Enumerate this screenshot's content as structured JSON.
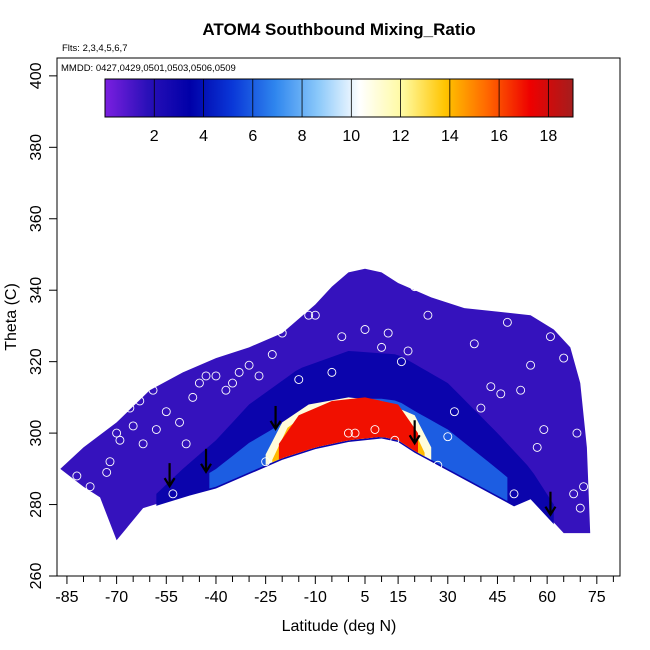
{
  "chart_data": {
    "type": "heatmap",
    "title": "ATOM4 Southbound Mixing_Ratio",
    "flights_note": "Flts: 2,3,4,5,6,7",
    "dates_note": "MMDD: 0427,0429,0501,0503,0506,0509",
    "xlabel": "Latitude (deg N)",
    "ylabel": "Theta (C)",
    "xlim": [
      -88,
      82
    ],
    "ylim": [
      260,
      405
    ],
    "x_ticks": [
      -85,
      -70,
      -55,
      -40,
      -25,
      -10,
      5,
      15,
      30,
      45,
      60,
      75
    ],
    "x_minor_ticks": [
      -80,
      -75,
      -65,
      -60,
      -50,
      -45,
      -35,
      -30,
      -20,
      -15,
      -5,
      0,
      10,
      20,
      25,
      35,
      40,
      50,
      55,
      65,
      70,
      80
    ],
    "y_ticks": [
      260,
      280,
      300,
      320,
      340,
      360,
      380,
      400
    ],
    "colorbar": {
      "range": [
        0,
        19
      ],
      "ticks": [
        2,
        4,
        6,
        8,
        10,
        12,
        14,
        16,
        18
      ],
      "colors": [
        "#7b1fe0",
        "#2a10b8",
        "#0000a8",
        "#0a38d8",
        "#2f86ee",
        "#8ac8fa",
        "#ffffff",
        "#fffaa0",
        "#ffc400",
        "#ff6600",
        "#ee0000",
        "#a51d1d"
      ]
    },
    "domain_outline": {
      "upper": [
        [
          -87,
          290
        ],
        [
          -80,
          296
        ],
        [
          -70,
          303
        ],
        [
          -60,
          312
        ],
        [
          -50,
          317
        ],
        [
          -40,
          321
        ],
        [
          -30,
          324
        ],
        [
          -20,
          328
        ],
        [
          -10,
          336
        ],
        [
          -5,
          341
        ],
        [
          0,
          345
        ],
        [
          5,
          346
        ],
        [
          10,
          345
        ],
        [
          15,
          342
        ],
        [
          25,
          338
        ],
        [
          35,
          335
        ],
        [
          45,
          334
        ],
        [
          55,
          333
        ],
        [
          62,
          329
        ],
        [
          67,
          324
        ],
        [
          70,
          314
        ],
        [
          72,
          296
        ],
        [
          73,
          272
        ]
      ],
      "lower": [
        [
          -87,
          290
        ],
        [
          -80,
          285
        ],
        [
          -75,
          282
        ],
        [
          -70,
          270
        ],
        [
          -62,
          279
        ],
        [
          -55,
          281
        ],
        [
          -48,
          283
        ],
        [
          -40,
          285
        ],
        [
          -30,
          289
        ],
        [
          -20,
          293
        ],
        [
          -10,
          296
        ],
        [
          0,
          298
        ],
        [
          10,
          299
        ],
        [
          15,
          298
        ],
        [
          20,
          295
        ],
        [
          30,
          290
        ],
        [
          40,
          285
        ],
        [
          50,
          280
        ],
        [
          55,
          282
        ],
        [
          65,
          272
        ],
        [
          73,
          272
        ]
      ]
    },
    "isolines": {
      "wet_core": [
        [
          -25,
          294
        ],
        [
          -20,
          303
        ],
        [
          -12,
          308
        ],
        [
          0,
          310
        ],
        [
          10,
          309
        ],
        [
          20,
          305
        ],
        [
          25,
          296
        ]
      ],
      "red_core": [
        [
          -21,
          297
        ],
        [
          -15,
          305
        ],
        [
          -5,
          309
        ],
        [
          5,
          310
        ],
        [
          15,
          308
        ],
        [
          21,
          300
        ]
      ],
      "blue_band": [
        [
          -58,
          283
        ],
        [
          -50,
          290
        ],
        [
          -40,
          298
        ],
        [
          -30,
          308
        ],
        [
          -15,
          318
        ],
        [
          0,
          323
        ],
        [
          15,
          322
        ],
        [
          30,
          314
        ],
        [
          45,
          300
        ],
        [
          55,
          290
        ],
        [
          62,
          280
        ]
      ]
    },
    "arrows": [
      {
        "lat": -54,
        "theta": 286
      },
      {
        "lat": -43,
        "theta": 290
      },
      {
        "lat": -22,
        "theta": 302
      },
      {
        "lat": 20,
        "theta": 298
      },
      {
        "lat": 61,
        "theta": 278
      }
    ],
    "observations": [
      [
        -82,
        288
      ],
      [
        -78,
        285
      ],
      [
        -73,
        289
      ],
      [
        -72,
        292
      ],
      [
        -70,
        300
      ],
      [
        -69,
        298
      ],
      [
        -66,
        307
      ],
      [
        -65,
        302
      ],
      [
        -63,
        309
      ],
      [
        -62,
        297
      ],
      [
        -61,
        314
      ],
      [
        -59,
        312
      ],
      [
        -58,
        301
      ],
      [
        -55,
        306
      ],
      [
        -53,
        283
      ],
      [
        -51,
        303
      ],
      [
        -49,
        297
      ],
      [
        -47,
        310
      ],
      [
        -45,
        314
      ],
      [
        -43,
        316
      ],
      [
        -40,
        316
      ],
      [
        -37,
        312
      ],
      [
        -35,
        314
      ],
      [
        -33,
        317
      ],
      [
        -30,
        319
      ],
      [
        -27,
        316
      ],
      [
        -25,
        292
      ],
      [
        -23,
        322
      ],
      [
        -20,
        328
      ],
      [
        -15,
        315
      ],
      [
        -12,
        333
      ],
      [
        -10,
        333
      ],
      [
        -5,
        317
      ],
      [
        -2,
        327
      ],
      [
        0,
        300
      ],
      [
        2,
        300
      ],
      [
        5,
        329
      ],
      [
        8,
        301
      ],
      [
        10,
        324
      ],
      [
        12,
        328
      ],
      [
        14,
        298
      ],
      [
        16,
        320
      ],
      [
        18,
        323
      ],
      [
        20,
        341
      ],
      [
        22,
        344
      ],
      [
        24,
        333
      ],
      [
        27,
        291
      ],
      [
        30,
        299
      ],
      [
        32,
        306
      ],
      [
        35,
        284
      ],
      [
        38,
        325
      ],
      [
        40,
        307
      ],
      [
        43,
        313
      ],
      [
        46,
        311
      ],
      [
        48,
        331
      ],
      [
        50,
        283
      ],
      [
        52,
        312
      ],
      [
        55,
        319
      ],
      [
        57,
        296
      ],
      [
        59,
        301
      ],
      [
        61,
        327
      ],
      [
        65,
        321
      ],
      [
        68,
        283
      ],
      [
        69,
        300
      ],
      [
        70,
        279
      ],
      [
        71,
        285
      ]
    ],
    "field_zones": [
      {
        "name": "dry-upper",
        "value": 1
      },
      {
        "name": "blue-lower",
        "value": 3
      },
      {
        "name": "cyan-band",
        "value": 6
      },
      {
        "name": "wet-core",
        "value": 11
      },
      {
        "name": "orange-core",
        "value": 14
      },
      {
        "name": "red-core",
        "value": 17
      }
    ]
  },
  "colors": {
    "outline": "#000000",
    "arrow": "#000000",
    "observation": "#ffffff"
  }
}
